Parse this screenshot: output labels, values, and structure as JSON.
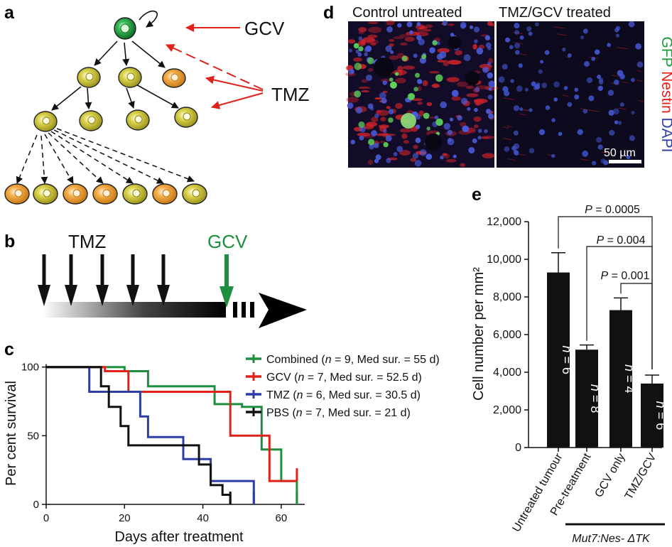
{
  "panel_letters": {
    "a": "a",
    "b": "b",
    "c": "c",
    "d": "d",
    "e": "e"
  },
  "colors": {
    "green": "#1e8f3e",
    "red": "#e0221b",
    "blue": "#2e3ca6",
    "black": "#111111",
    "stem": "#1f9a3a",
    "progenitor": "#c9c437",
    "differentiated": "#f2a23a"
  },
  "panel_a": {
    "gcv_label": "GCV",
    "tmz_label": "TMZ"
  },
  "panel_b": {
    "tmz_label": "TMZ",
    "gcv_label": "GCV",
    "tmz_pulses": 5
  },
  "panel_c": {
    "chart_data": {
      "type": "line",
      "ylabel": "Per cent survival",
      "xlabel": "Days after treatment",
      "xlim": [
        0,
        68
      ],
      "ylim": [
        0,
        105
      ],
      "x_ticks": [
        "0",
        "20",
        "40",
        "60"
      ],
      "y_ticks": [
        "0",
        "50",
        "100"
      ],
      "series": [
        {
          "key": "combined",
          "name": "Combined",
          "n": "9",
          "median": "55 d",
          "color": "green",
          "steps": [
            [
              0,
              100
            ],
            [
              20,
              100
            ],
            [
              20,
              97
            ],
            [
              26,
              97
            ],
            [
              26,
              86
            ],
            [
              43,
              86
            ],
            [
              43,
              73
            ],
            [
              50,
              73
            ],
            [
              50,
              71
            ],
            [
              55,
              71
            ],
            [
              55,
              40
            ],
            [
              60,
              40
            ],
            [
              60,
              17
            ],
            [
              64,
              17
            ],
            [
              64,
              0
            ]
          ]
        },
        {
          "key": "gcv",
          "name": "GCV",
          "n": "7",
          "median": "52.5 d",
          "color": "red",
          "steps": [
            [
              0,
              100
            ],
            [
              15,
              100
            ],
            [
              15,
              97
            ],
            [
              21,
              97
            ],
            [
              21,
              82
            ],
            [
              47,
              82
            ],
            [
              47,
              50
            ],
            [
              57,
              50
            ],
            [
              57,
              17
            ],
            [
              64,
              17
            ]
          ]
        },
        {
          "key": "tmz",
          "name": "TMZ",
          "n": "6",
          "median": "30.5 d",
          "color": "blue",
          "steps": [
            [
              0,
              100
            ],
            [
              11,
              100
            ],
            [
              11,
              82
            ],
            [
              24,
              82
            ],
            [
              24,
              64
            ],
            [
              26,
              64
            ],
            [
              26,
              49
            ],
            [
              35,
              49
            ],
            [
              35,
              33
            ],
            [
              42,
              33
            ],
            [
              42,
              17
            ],
            [
              53,
              17
            ],
            [
              53,
              0
            ]
          ]
        },
        {
          "key": "pbs",
          "name": "PBS",
          "n": "7",
          "median": "21 d",
          "color": "black",
          "steps": [
            [
              0,
              100
            ],
            [
              14,
              100
            ],
            [
              14,
              86
            ],
            [
              16,
              86
            ],
            [
              16,
              71
            ],
            [
              19,
              71
            ],
            [
              19,
              57
            ],
            [
              21,
              57
            ],
            [
              21,
              43
            ],
            [
              39,
              43
            ],
            [
              39,
              29
            ],
            [
              42,
              29
            ],
            [
              42,
              14
            ],
            [
              45,
              14
            ],
            [
              45,
              7
            ],
            [
              47,
              7
            ],
            [
              47,
              0
            ]
          ]
        }
      ],
      "legend_prefix_n": "(n",
      "legend_mid": ", Med sur. = ",
      "legend_suffix": ")"
    }
  },
  "panel_d": {
    "control_label": "Control untreated",
    "treated_label": "TMZ/GCV  treated",
    "stain_gfp": "GFP",
    "stain_nestin": "Nestin",
    "stain_dapi": "DAPI",
    "scale_bar": "50 µm"
  },
  "panel_e": {
    "chart_data": {
      "type": "bar",
      "ylabel": "Cell number per mm²",
      "ylim": [
        0,
        12000
      ],
      "y_ticks": [
        "0",
        "2,000",
        "4,000",
        "6,000",
        "8,000",
        "10,000",
        "12,000"
      ],
      "categories": [
        "Untreated tumour",
        "Pre-treatment",
        "GCV only",
        "TMZ/GCV"
      ],
      "values": [
        9300,
        5200,
        7300,
        3400
      ],
      "errors": [
        1050,
        250,
        650,
        450
      ],
      "n_labels": [
        "n = 6",
        "n = 8",
        "n = 4",
        "n = 6"
      ],
      "p_values": [
        "P = 0.0005",
        "P = 0.004",
        "P = 0.001"
      ],
      "genotype": "Mut7:Nes- ΔTK"
    }
  }
}
